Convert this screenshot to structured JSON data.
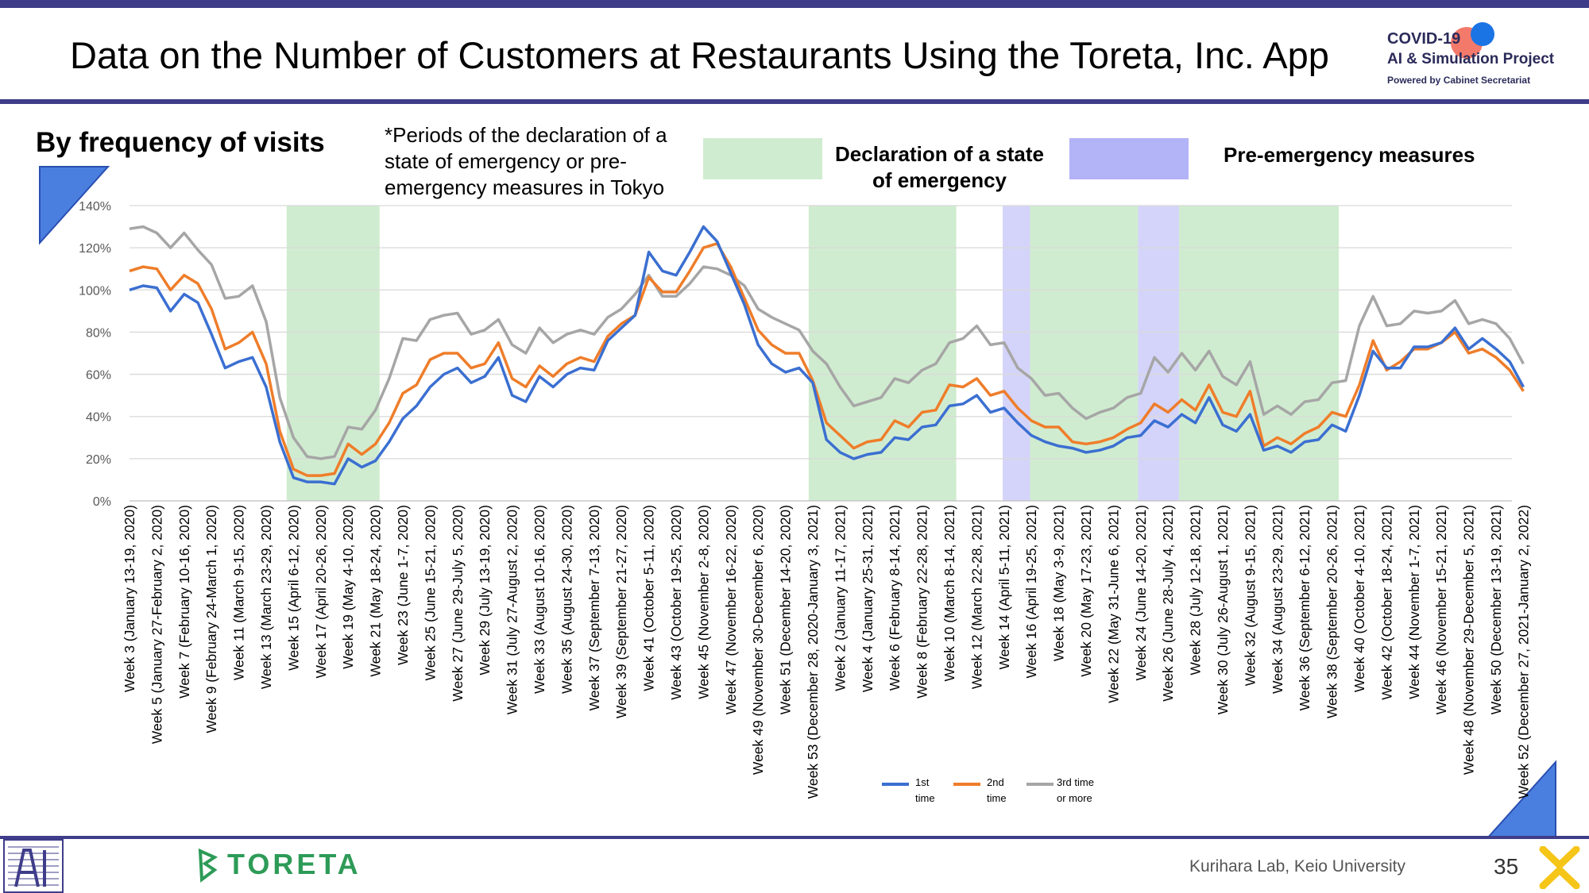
{
  "header": {
    "title": "Data on the Number of Customers at Restaurants Using the Toreta, Inc. App",
    "logo_line1": "COVID-19",
    "logo_line2": "AI & Simulation Project",
    "logo_line3": "Powered by Cabinet Secretariat"
  },
  "slide": {
    "subtitle": "By frequency of visits",
    "note": "*Periods of the declaration of a state of emergency or pre-emergency measures in Tokyo",
    "legend_emergency": "Declaration of a state of emergency",
    "legend_pre": "Pre-emergency measures"
  },
  "footer": {
    "brand": "TORETA",
    "credit": "Kurihara Lab, Keio University",
    "page": "35"
  },
  "colors": {
    "first": "#3b6fd1",
    "second": "#ef7d2a",
    "third": "#a6a6a6",
    "emergency": "#d0ecd0",
    "pre_emergency": "#d4d4fa",
    "accent": "#3f3d8a"
  },
  "chart_data": {
    "type": "line",
    "ylim": [
      0,
      1.4
    ],
    "yticks": [
      "0%",
      "20%",
      "40%",
      "60%",
      "80%",
      "100%",
      "120%",
      "140%"
    ],
    "x_labels": [
      "Week 3 (January 13-19, 2020)",
      "Week 5 (January 27-February 2, 2020)",
      "Week 7 (February 10-16, 2020)",
      "Week 9 (February 24-March 1, 2020)",
      "Week 11 (March 9-15, 2020)",
      "Week 13 (March 23-29, 2020)",
      "Week 15 (April 6-12, 2020)",
      "Week 17 (April 20-26, 2020)",
      "Week 19 (May 4-10, 2020)",
      "Week 21 (May 18-24, 2020)",
      "Week 23 (June 1-7, 2020)",
      "Week 25 (June 15-21, 2020)",
      "Week 27 (June 29-July 5, 2020)",
      "Week 29 (July 13-19, 2020)",
      "Week 31 (July 27-August 2, 2020)",
      "Week 33 (August 10-16, 2020)",
      "Week 35 (August 24-30, 2020)",
      "Week 37 (September 7-13, 2020)",
      "Week 39 (September 21-27, 2020)",
      "Week 41 (October 5-11, 2020)",
      "Week 43 (October 19-25, 2020)",
      "Week 45 (November 2-8, 2020)",
      "Week 47 (November 16-22, 2020)",
      "Week 49 (November 30-December 6, 2020)",
      "Week 51 (December 14-20, 2020)",
      "Week 53 (December 28, 2020-January 3, 2021)",
      "Week 2 (January 11-17, 2021)",
      "Week 4 (January 25-31, 2021)",
      "Week 6 (February 8-14, 2021)",
      "Week 8 (February 22-28, 2021)",
      "Week 10 (March 8-14, 2021)",
      "Week 12 (March 22-28, 2021)",
      "Week 14 (April 5-11, 2021)",
      "Week 16 (April 19-25, 2021)",
      "Week 18 (May 3-9, 2021)",
      "Week 20 (May 17-23, 2021)",
      "Week 22 (May 31-June 6, 2021)",
      "Week 24 (June 14-20, 2021)",
      "Week 26 (June 28-July 4, 2021)",
      "Week 28 (July 12-18, 2021)",
      "Week 30 (July 26-August 1, 2021)",
      "Week 32 (August 9-15, 2021)",
      "Week 34 (August 23-29, 2021)",
      "Week 36 (September 6-12, 2021)",
      "Week 38 (September 20-26, 2021)",
      "Week 40 (October 4-10, 2021)",
      "Week 42 (October 18-24, 2021)",
      "Week 44 (November 1-7, 2021)",
      "Week 46 (November 15-21, 2021)",
      "Week 48 (November 29-December 5, 2021)",
      "Week 50 (December 13-19, 2021)",
      "Week 52 (December 27, 2021-January 2, 2022)"
    ],
    "shaded_periods": [
      {
        "kind": "emergency",
        "from_week_index": 11.5,
        "to_week_index": 18.3
      },
      {
        "kind": "emergency",
        "from_week_index": 49.7,
        "to_week_index": 60.5
      },
      {
        "kind": "pre_emergency",
        "from_week_index": 63.9,
        "to_week_index": 65.9
      },
      {
        "kind": "emergency",
        "from_week_index": 65.9,
        "to_week_index": 73.8
      },
      {
        "kind": "pre_emergency",
        "from_week_index": 73.8,
        "to_week_index": 76.8
      },
      {
        "kind": "emergency",
        "from_week_index": 76.8,
        "to_week_index": 88.5
      }
    ],
    "series": [
      {
        "name": "1st time",
        "values": [
          1.0,
          1.02,
          1.01,
          0.9,
          0.98,
          0.94,
          0.79,
          0.63,
          0.66,
          0.68,
          0.54,
          0.28,
          0.11,
          0.09,
          0.09,
          0.08,
          0.2,
          0.16,
          0.19,
          0.28,
          0.39,
          0.45,
          0.54,
          0.6,
          0.63,
          0.56,
          0.59,
          0.68,
          0.5,
          0.47,
          0.59,
          0.54,
          0.6,
          0.63,
          0.62,
          0.76,
          0.82,
          0.88,
          1.18,
          1.09,
          1.07,
          1.18,
          1.3,
          1.23,
          1.08,
          0.93,
          0.74,
          0.65,
          0.61,
          0.63,
          0.56,
          0.29,
          0.23,
          0.2,
          0.22,
          0.23,
          0.3,
          0.29,
          0.35,
          0.36,
          0.45,
          0.46,
          0.5,
          0.42,
          0.44,
          0.37,
          0.31,
          0.28,
          0.26,
          0.25,
          0.23,
          0.24,
          0.26,
          0.3,
          0.31,
          0.38,
          0.35,
          0.41,
          0.37,
          0.49,
          0.36,
          0.33,
          0.41,
          0.24,
          0.26,
          0.23,
          0.28,
          0.29,
          0.36,
          0.33,
          0.5,
          0.71,
          0.63,
          0.63,
          0.73,
          0.73,
          0.75,
          0.82,
          0.72,
          0.77,
          0.72,
          0.66,
          0.54
        ]
      },
      {
        "name": "2nd time",
        "values": [
          1.09,
          1.11,
          1.1,
          1.0,
          1.07,
          1.03,
          0.91,
          0.72,
          0.75,
          0.8,
          0.65,
          0.33,
          0.15,
          0.12,
          0.12,
          0.13,
          0.27,
          0.22,
          0.27,
          0.37,
          0.51,
          0.55,
          0.67,
          0.7,
          0.7,
          0.63,
          0.65,
          0.75,
          0.58,
          0.54,
          0.64,
          0.59,
          0.65,
          0.68,
          0.66,
          0.78,
          0.84,
          0.88,
          1.06,
          0.99,
          0.99,
          1.09,
          1.2,
          1.22,
          1.11,
          0.96,
          0.81,
          0.74,
          0.7,
          0.7,
          0.57,
          0.37,
          0.31,
          0.25,
          0.28,
          0.29,
          0.38,
          0.35,
          0.42,
          0.43,
          0.55,
          0.54,
          0.58,
          0.5,
          0.52,
          0.44,
          0.38,
          0.35,
          0.35,
          0.28,
          0.27,
          0.28,
          0.3,
          0.34,
          0.37,
          0.46,
          0.42,
          0.48,
          0.43,
          0.55,
          0.42,
          0.4,
          0.52,
          0.26,
          0.3,
          0.27,
          0.32,
          0.35,
          0.42,
          0.4,
          0.55,
          0.76,
          0.62,
          0.66,
          0.72,
          0.72,
          0.75,
          0.8,
          0.7,
          0.72,
          0.68,
          0.62,
          0.52
        ]
      },
      {
        "name": "3rd time or more",
        "values": [
          1.29,
          1.3,
          1.27,
          1.2,
          1.27,
          1.19,
          1.12,
          0.96,
          0.97,
          1.02,
          0.85,
          0.49,
          0.3,
          0.21,
          0.2,
          0.21,
          0.35,
          0.34,
          0.43,
          0.58,
          0.77,
          0.76,
          0.86,
          0.88,
          0.89,
          0.79,
          0.81,
          0.86,
          0.74,
          0.7,
          0.82,
          0.75,
          0.79,
          0.81,
          0.79,
          0.87,
          0.91,
          0.98,
          1.07,
          0.97,
          0.97,
          1.03,
          1.11,
          1.1,
          1.07,
          1.02,
          0.91,
          0.87,
          0.84,
          0.81,
          0.71,
          0.65,
          0.54,
          0.45,
          0.47,
          0.49,
          0.58,
          0.56,
          0.62,
          0.65,
          0.75,
          0.77,
          0.83,
          0.74,
          0.75,
          0.63,
          0.58,
          0.5,
          0.51,
          0.44,
          0.39,
          0.42,
          0.44,
          0.49,
          0.51,
          0.68,
          0.61,
          0.7,
          0.62,
          0.71,
          0.59,
          0.55,
          0.66,
          0.41,
          0.45,
          0.41,
          0.47,
          0.48,
          0.56,
          0.57,
          0.83,
          0.97,
          0.83,
          0.84,
          0.9,
          0.89,
          0.9,
          0.95,
          0.84,
          0.86,
          0.84,
          0.77,
          0.65
        ]
      }
    ],
    "legend": [
      {
        "line1": "1st",
        "line2": "time"
      },
      {
        "line1": "2nd",
        "line2": "time"
      },
      {
        "line1": "3rd  time",
        "line2": "or more"
      }
    ]
  }
}
